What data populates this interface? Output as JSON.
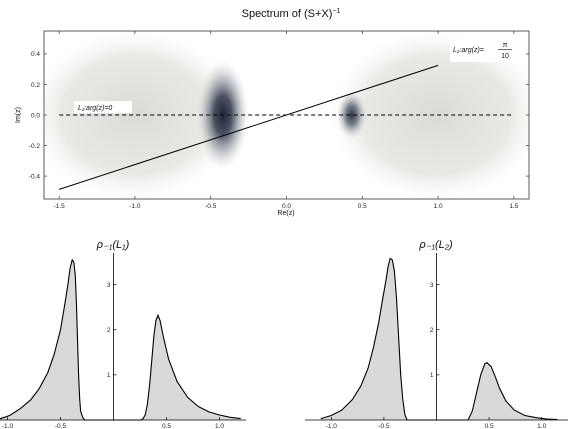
{
  "chart_data": [
    {
      "type": "heatmap",
      "title": "Spectrum of (S+X)⁻¹",
      "title_text": "Spectrum of (S+X)",
      "title_sup": "−1",
      "xlabel": "Re(z)",
      "ylabel": "Im(z)",
      "xlim": [
        -1.6,
        1.6
      ],
      "ylim": [
        -0.55,
        0.55
      ],
      "x_ticks": [
        -1.5,
        -1.0,
        -0.5,
        0.0,
        0.5,
        1.0,
        1.5
      ],
      "x_tick_labels": [
        "-1.5",
        "-1.0",
        "-0.5",
        "0.0",
        "0.5",
        "1.0",
        "1.5"
      ],
      "y_ticks": [
        -0.4,
        -0.2,
        0.0,
        0.2,
        0.4
      ],
      "y_tick_labels": [
        "-0.4",
        "-0.2",
        "0.0",
        "0.2",
        "0.4"
      ],
      "clusters": [
        {
          "center_x": -0.42,
          "center_y": 0.0,
          "peak": "dark",
          "extent_x": [
            -1.6,
            -0.3
          ],
          "extent_y": [
            -0.55,
            0.55
          ]
        },
        {
          "center_x": 0.43,
          "center_y": 0.0,
          "peak": "medium",
          "extent_x": [
            0.28,
            1.6
          ],
          "extent_y": [
            -0.55,
            0.55
          ]
        }
      ],
      "lines": [
        {
          "name": "L1",
          "label_text": "L₁:arg(z)=0",
          "style": "dashed",
          "from": [
            -1.5,
            0.0
          ],
          "to": [
            1.5,
            0.0
          ]
        },
        {
          "name": "L2",
          "label_text": "L₂:arg(z)=",
          "label_fraction": [
            "π",
            "10"
          ],
          "style": "solid",
          "from": [
            -1.5,
            -0.487
          ],
          "to": [
            1.0,
            0.325
          ]
        }
      ]
    },
    {
      "type": "area",
      "title": "ρ₋₁(L₁)",
      "xlim": [
        -1.25,
        1.25
      ],
      "ylim": [
        0,
        3.7
      ],
      "x_ticks": [
        -1.0,
        -0.5,
        0.5,
        1.0
      ],
      "x_tick_labels": [
        "-1.0",
        "-0.5",
        "0.5",
        "1.0"
      ],
      "y_ticks": [
        1,
        2,
        3
      ],
      "y_tick_labels": [
        "1",
        "2",
        "3"
      ],
      "curve": {
        "x": [
          -1.08,
          -0.98,
          -0.88,
          -0.78,
          -0.7,
          -0.62,
          -0.56,
          -0.5,
          -0.46,
          -0.43,
          -0.41,
          -0.39,
          -0.375,
          -0.36,
          -0.35,
          -0.34,
          -0.33,
          -0.32,
          -0.31,
          -0.29,
          -0.27,
          0.26,
          0.28,
          0.3,
          0.32,
          0.34,
          0.36,
          0.38,
          0.4,
          0.42,
          0.44,
          0.47,
          0.52,
          0.6,
          0.7,
          0.8,
          0.9,
          1.0,
          1.1,
          1.2
        ],
        "y": [
          0.02,
          0.1,
          0.25,
          0.45,
          0.7,
          1.05,
          1.45,
          2.0,
          2.55,
          3.0,
          3.35,
          3.55,
          3.5,
          3.2,
          2.6,
          1.8,
          1.05,
          0.5,
          0.2,
          0.05,
          0.0,
          0.0,
          0.03,
          0.12,
          0.35,
          0.75,
          1.3,
          1.85,
          2.2,
          2.32,
          2.2,
          1.85,
          1.35,
          0.85,
          0.5,
          0.3,
          0.18,
          0.11,
          0.06,
          0.03
        ]
      }
    },
    {
      "type": "area",
      "title": "ρ₋₁(L₂)",
      "xlim": [
        -1.25,
        1.25
      ],
      "ylim": [
        0,
        3.7
      ],
      "x_ticks": [
        -1.0,
        -0.5,
        0.5,
        1.0
      ],
      "x_tick_labels": [
        "-1.0",
        "-0.5",
        "0.5",
        "1.0"
      ],
      "y_ticks": [
        1,
        2,
        3
      ],
      "y_tick_labels": [
        "1",
        "2",
        "3"
      ],
      "curve": {
        "x": [
          -1.1,
          -1.0,
          -0.9,
          -0.8,
          -0.72,
          -0.65,
          -0.6,
          -0.55,
          -0.51,
          -0.48,
          -0.46,
          -0.44,
          -0.42,
          -0.4,
          -0.38,
          -0.36,
          -0.34,
          -0.32,
          -0.3,
          -0.28,
          0.3,
          0.34,
          0.38,
          0.42,
          0.46,
          0.48,
          0.52,
          0.56,
          0.6,
          0.66,
          0.74,
          0.84,
          0.95,
          1.05,
          1.15
        ],
        "y": [
          0.03,
          0.1,
          0.22,
          0.45,
          0.75,
          1.15,
          1.6,
          2.15,
          2.7,
          3.1,
          3.4,
          3.58,
          3.55,
          3.3,
          2.7,
          1.85,
          1.0,
          0.45,
          0.12,
          0.0,
          0.0,
          0.2,
          0.6,
          1.0,
          1.25,
          1.27,
          1.18,
          0.95,
          0.7,
          0.42,
          0.22,
          0.1,
          0.05,
          0.02,
          0.01
        ]
      }
    }
  ]
}
